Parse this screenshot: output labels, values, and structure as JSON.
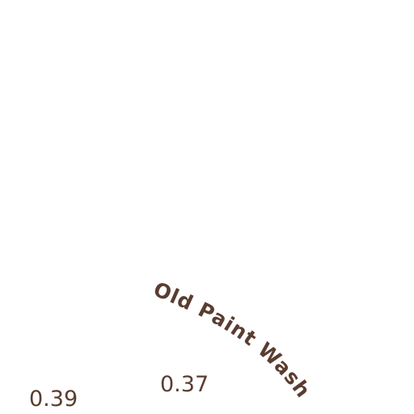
{
  "colors": {
    "background": "#ffffff",
    "ink": "#5a3d30"
  },
  "labels": {
    "left_value": "0.39",
    "middle_value": "0.37",
    "curved_title": "Old Paint Wash"
  }
}
